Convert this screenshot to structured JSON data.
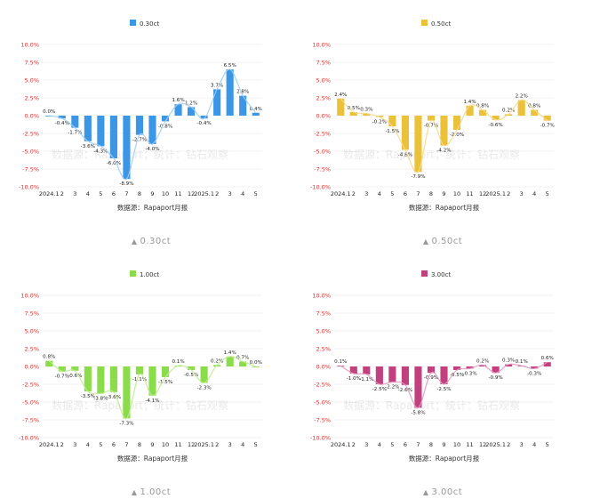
{
  "chart_data": [
    {
      "type": "bar",
      "title": "0.30ct",
      "legend": "0.30ct",
      "legend_position": "top",
      "color": "#3b97e6",
      "line_color": "#a3cdef",
      "ylim": [
        -10,
        10
      ],
      "yticks": [
        "10.0%",
        "7.5%",
        "5.0%",
        "2.5%",
        "0.0%",
        "-2.5%",
        "-5.0%",
        "-7.5%",
        "-10.0%"
      ],
      "categories": [
        "2024.1",
        "2",
        "3",
        "4",
        "5",
        "6",
        "7",
        "8",
        "9",
        "10",
        "11",
        "12",
        "2025.1",
        "2",
        "3",
        "4",
        "5"
      ],
      "values": [
        0.0,
        -0.4,
        -1.7,
        -3.6,
        -4.3,
        -6.0,
        -8.9,
        -2.7,
        -4.0,
        -0.8,
        1.6,
        1.2,
        -0.4,
        3.7,
        6.5,
        2.8,
        0.4
      ],
      "labels": [
        "0.0%",
        "-0.4%",
        "-1.7%",
        "-3.6%",
        "-4.3%",
        "-6.0%",
        "-8.9%",
        "-2.7%",
        "-4.0%",
        "-0.8%",
        "1.6%",
        "1.2%",
        "-0.4%",
        "3.7%",
        "6.5%",
        "2.8%",
        "0.4%"
      ],
      "source": "数据源：Rapaport月报",
      "watermark": "数据源：Rapaport；统计：钻石观察",
      "caption": "0.30ct",
      "caption_icon": "▲"
    },
    {
      "type": "bar",
      "title": "0.50ct",
      "legend": "0.50ct",
      "legend_position": "top",
      "color": "#ecc13a",
      "line_color": "#f3d98c",
      "ylim": [
        -10,
        10
      ],
      "yticks": [
        "10.0%",
        "7.5%",
        "5.0%",
        "2.5%",
        "0.0%",
        "-2.5%",
        "-5.0%",
        "-7.5%",
        "-10.0%"
      ],
      "categories": [
        "2024.1",
        "2",
        "3",
        "4",
        "5",
        "6",
        "7",
        "8",
        "9",
        "10",
        "11",
        "12",
        "2025.1",
        "2",
        "3",
        "4",
        "5"
      ],
      "values": [
        2.4,
        0.5,
        0.3,
        -0.2,
        -1.5,
        -4.8,
        -7.9,
        -0.7,
        -4.2,
        -2.0,
        1.4,
        0.8,
        -0.6,
        0.2,
        2.2,
        0.8,
        -0.7
      ],
      "labels": [
        "2.4%",
        "0.5%",
        "0.3%",
        "-0.2%",
        "-1.5%",
        "-4.8%",
        "-7.9%",
        "-0.7%",
        "-4.2%",
        "-2.0%",
        "1.4%",
        "0.8%",
        "-0.6%",
        "0.2%",
        "2.2%",
        "0.8%",
        "-0.7%"
      ],
      "source": "数据源：Rapaport月报",
      "watermark": "数据源：Rapaport；统计：钻石观察",
      "caption": "0.50ct",
      "caption_icon": "▲"
    },
    {
      "type": "bar",
      "title": "1.00ct",
      "legend": "1.00ct",
      "legend_position": "top",
      "color": "#8bdc4a",
      "line_color": "#bfeb94",
      "ylim": [
        -10,
        10
      ],
      "yticks": [
        "10.0%",
        "7.5%",
        "5.0%",
        "2.5%",
        "0.0%",
        "-2.5%",
        "-5.0%",
        "-7.5%",
        "-10.0%"
      ],
      "categories": [
        "2024.1",
        "2",
        "3",
        "4",
        "5",
        "6",
        "7",
        "8",
        "9",
        "10",
        "11",
        "12",
        "2025.1",
        "2",
        "3",
        "4",
        "5"
      ],
      "values": [
        0.8,
        -0.7,
        -0.6,
        -3.5,
        -3.8,
        -3.6,
        -7.3,
        -1.1,
        -4.1,
        -1.5,
        0.1,
        -0.5,
        -2.3,
        0.2,
        1.4,
        0.7,
        0.0
      ],
      "labels": [
        "0.8%",
        "-0.7%",
        "-0.6%",
        "-3.5%",
        "-3.8%",
        "-3.6%",
        "-7.3%",
        "-1.1%",
        "-4.1%",
        "-1.5%",
        "0.1%",
        "-0.5%",
        "-2.3%",
        "0.2%",
        "1.4%",
        "0.7%",
        "0.0%"
      ],
      "source": "数据源：Rapaport月报",
      "watermark": "数据源：Rapaport；统计：钻石观察",
      "caption": "1.00ct",
      "caption_icon": "▲"
    },
    {
      "type": "bar",
      "title": "3.00ct",
      "legend": "3.00ct",
      "legend_position": "top",
      "color": "#c2407e",
      "line_color": "#e09bbd",
      "ylim": [
        -10,
        10
      ],
      "yticks": [
        "10.0%",
        "7.5%",
        "5.0%",
        "2.5%",
        "0.0%",
        "-2.5%",
        "-5.0%",
        "-7.5%",
        "-10.0%"
      ],
      "categories": [
        "2024.1",
        "2",
        "3",
        "4",
        "5",
        "6",
        "7",
        "8",
        "9",
        "10",
        "11",
        "12",
        "2025.1",
        "2",
        "3",
        "4",
        "5"
      ],
      "values": [
        0.1,
        -1.0,
        -1.1,
        -2.5,
        -2.2,
        -2.6,
        -5.8,
        -0.9,
        -2.5,
        -0.5,
        -0.3,
        0.2,
        -0.9,
        0.3,
        0.1,
        -0.3,
        0.6
      ],
      "labels": [
        "0.1%",
        "-1.0%",
        "-1.1%",
        "-2.5%",
        "-2.2%",
        "-2.6%",
        "-5.8%",
        "-0.9%",
        "-2.5%",
        "-0.5%",
        "-0.3%",
        "0.2%",
        "-0.9%",
        "0.3%",
        "0.1%",
        "-0.3%",
        "0.6%"
      ],
      "source": "数据源：Rapaport月报",
      "watermark": "数据源：Rapaport；统计：钻石观察",
      "caption": "3.00ct",
      "caption_icon": "▲"
    }
  ]
}
